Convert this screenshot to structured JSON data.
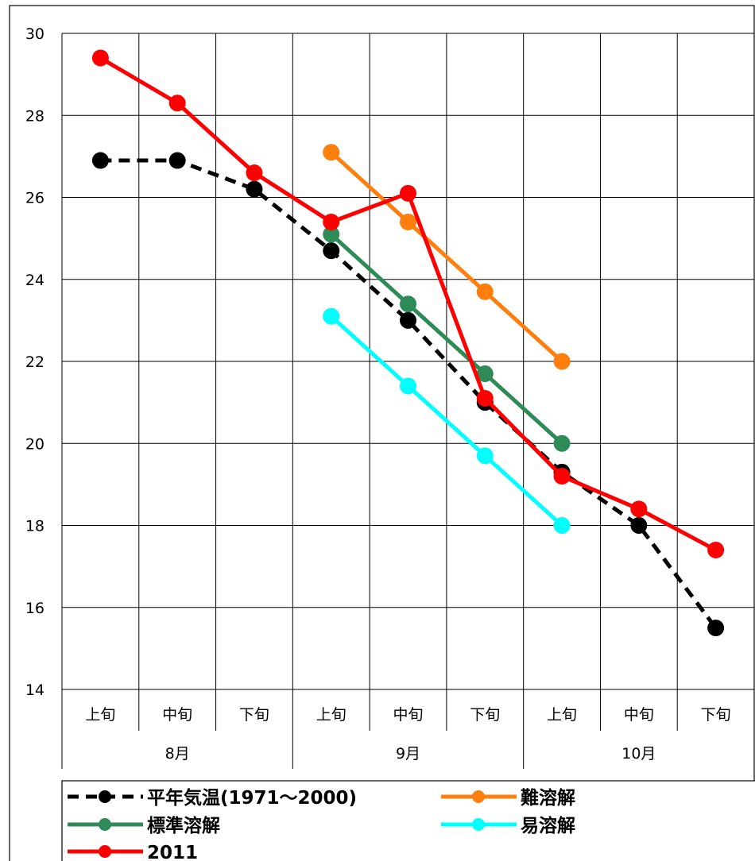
{
  "chart_data": {
    "type": "line",
    "title": "",
    "xlabel": "",
    "ylabel": "",
    "ylim": [
      14,
      30
    ],
    "yticks": [
      "30",
      "28",
      "26",
      "24",
      "22",
      "20",
      "18",
      "16",
      "14"
    ],
    "categories": [
      "上旬",
      "中旬",
      "下旬",
      "上旬",
      "中旬",
      "下旬",
      "上旬",
      "中旬",
      "下旬"
    ],
    "month_groups": [
      {
        "label": "8月",
        "span": 3
      },
      {
        "label": "9月",
        "span": 3
      },
      {
        "label": "10月",
        "span": 3
      }
    ],
    "grid": true,
    "legend_position": "bottom",
    "series": [
      {
        "name": "平年気温(1971～2000)",
        "color": "#000000",
        "dashed": true,
        "values": [
          26.9,
          26.9,
          26.2,
          24.7,
          23.0,
          21.0,
          19.3,
          18.0,
          15.5
        ]
      },
      {
        "name": "難溶解",
        "color": "#FF7F0E",
        "dashed": false,
        "values": [
          null,
          null,
          null,
          27.1,
          25.4,
          23.7,
          22.0,
          null,
          null
        ]
      },
      {
        "name": "標準溶解",
        "color": "#2E8B57",
        "dashed": false,
        "values": [
          null,
          null,
          null,
          25.1,
          23.4,
          21.7,
          20.0,
          null,
          null
        ]
      },
      {
        "name": "易溶解",
        "color": "#00FFFF",
        "dashed": false,
        "values": [
          null,
          null,
          null,
          23.1,
          21.4,
          19.7,
          18.0,
          null,
          null
        ]
      },
      {
        "name": "2011",
        "color": "#FF0000",
        "dashed": false,
        "values": [
          29.4,
          28.3,
          26.6,
          25.4,
          26.1,
          21.1,
          19.2,
          18.4,
          17.4
        ]
      }
    ]
  }
}
